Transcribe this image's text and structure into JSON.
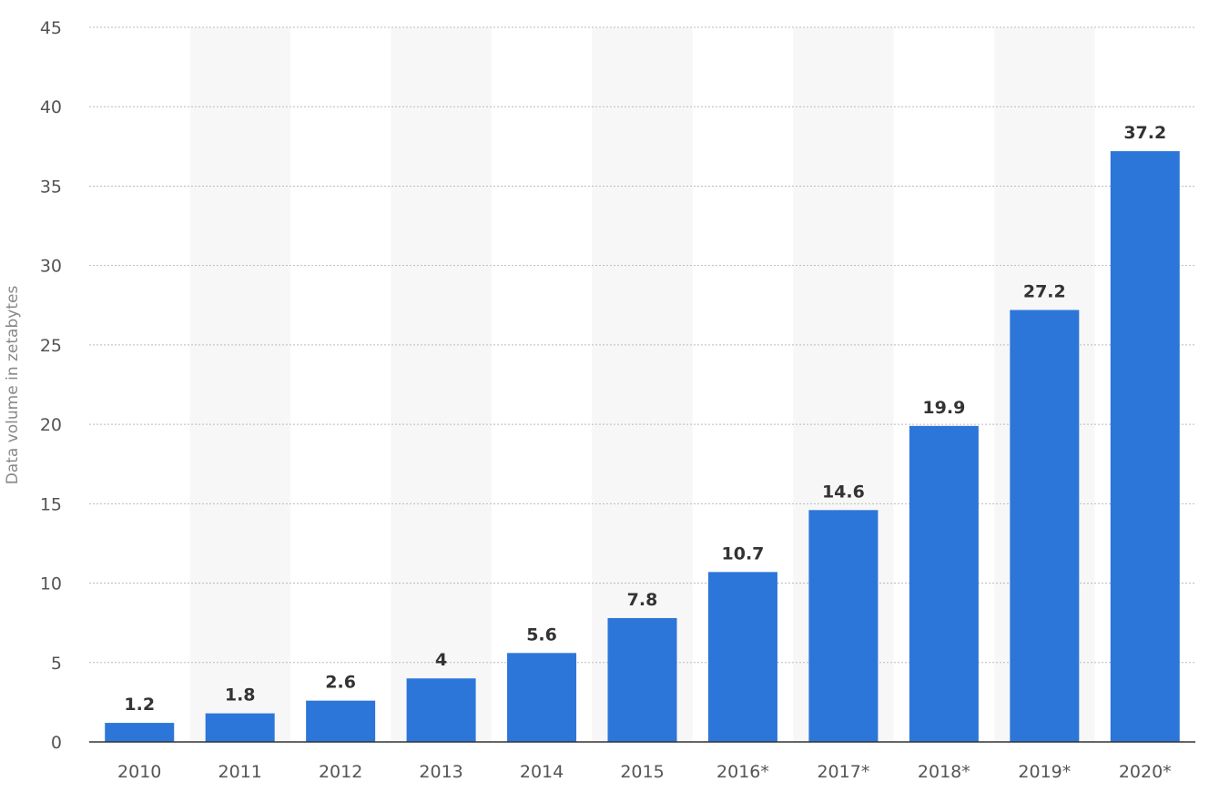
{
  "chart_data": {
    "type": "bar",
    "categories": [
      "2010",
      "2011",
      "2012",
      "2013",
      "2014",
      "2015",
      "2016*",
      "2017*",
      "2018*",
      "2019*",
      "2020*"
    ],
    "values": [
      1.2,
      1.8,
      2.6,
      4,
      5.6,
      7.8,
      10.7,
      14.6,
      19.9,
      27.2,
      37.2
    ],
    "value_labels": [
      "1.2",
      "1.8",
      "2.6",
      "4",
      "5.6",
      "7.8",
      "10.7",
      "14.6",
      "19.9",
      "27.2",
      "37.2"
    ],
    "yticks": [
      "0",
      "5",
      "10",
      "15",
      "20",
      "25",
      "30",
      "35",
      "40",
      "45"
    ],
    "ylim": [
      0,
      45
    ],
    "xlabel": "",
    "ylabel": "Data volume in zetabytes",
    "grid": true,
    "legend": "none",
    "colors": {
      "bar": "#2d76d9",
      "band": "#f7f7f7",
      "grid": "#bbbbbb",
      "axis": "#333333"
    }
  }
}
